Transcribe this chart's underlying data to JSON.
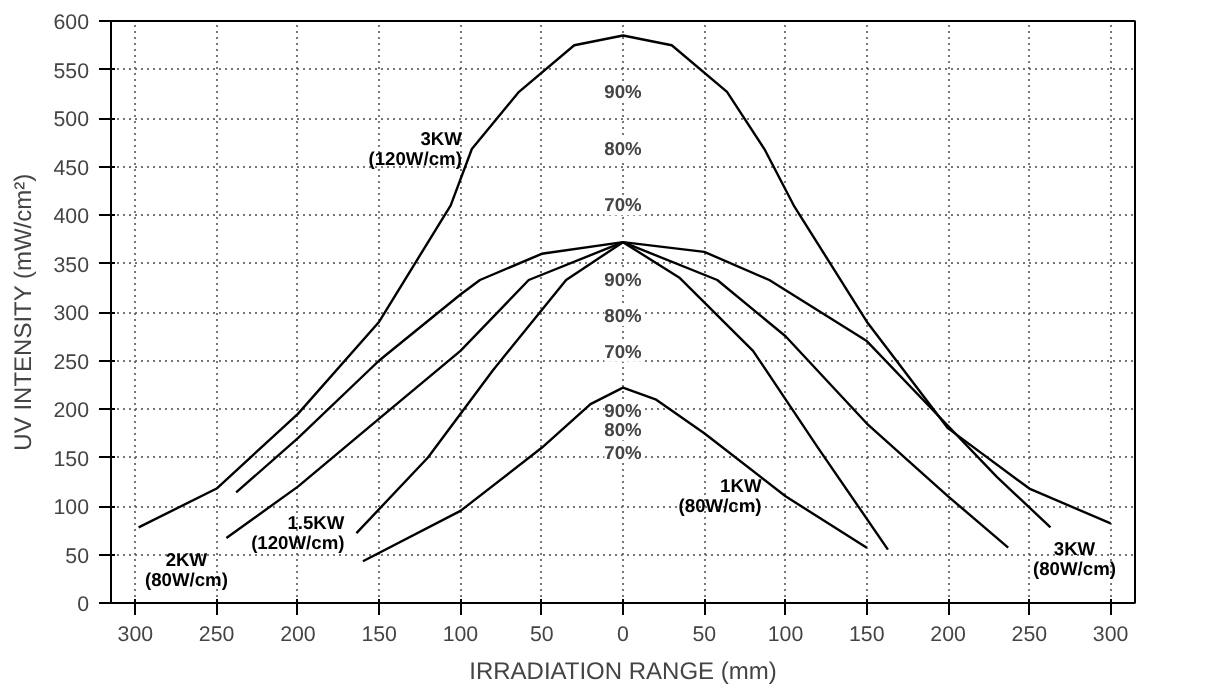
{
  "chart_data": {
    "type": "line",
    "xlabel": "IRRADIATION RANGE (mm)",
    "ylabel": "UV INTENSITY (mW/cm²)",
    "xlim": [
      -315,
      315
    ],
    "ylim": [
      0,
      600
    ],
    "xticks": [
      {
        "value": -300,
        "label": "300"
      },
      {
        "value": -250,
        "label": "250"
      },
      {
        "value": -200,
        "label": "200"
      },
      {
        "value": -150,
        "label": "150"
      },
      {
        "value": -100,
        "label": "100"
      },
      {
        "value": -50,
        "label": "50"
      },
      0,
      50,
      100,
      150,
      200,
      250,
      300
    ],
    "yticks": [
      0,
      50,
      100,
      150,
      200,
      250,
      300,
      350,
      400,
      450,
      500,
      550,
      600
    ],
    "grid": true,
    "marker": "none",
    "line_style": "solid",
    "series": [
      {
        "name": "3KW\n(120W/cm)",
        "color": "#000000",
        "x": [
          -298,
          -250,
          -200,
          -150,
          -106,
          -93,
          -64,
          -30,
          0,
          30,
          64,
          87,
          105,
          150,
          200,
          250,
          300
        ],
        "values": [
          78,
          118,
          195,
          290,
          410,
          468,
          527,
          575,
          585,
          575,
          527,
          468,
          410,
          290,
          180,
          118,
          82
        ]
      },
      {
        "name": "3KW\n(80W/cm)",
        "color": "#000000",
        "x": [
          -238,
          -200,
          -150,
          -100,
          -88,
          -50,
          0,
          50,
          90,
          150,
          190,
          230,
          263
        ],
        "values": [
          114,
          170,
          250,
          318,
          333,
          360,
          372,
          362,
          333,
          270,
          200,
          130,
          78
        ]
      },
      {
        "name": "2KW\n(80W/cm)",
        "color": "#000000",
        "x": [
          -244,
          -200,
          -150,
          -100,
          -58,
          0,
          58,
          100,
          150,
          200,
          237
        ],
        "values": [
          67,
          120,
          190,
          260,
          333,
          372,
          333,
          275,
          185,
          110,
          57
        ]
      },
      {
        "name": "1.5KW\n(120W/cm)",
        "color": "#000000",
        "x": [
          -164,
          -120,
          -80,
          -35,
          0,
          35,
          80,
          120,
          163
        ],
        "values": [
          72,
          150,
          240,
          333,
          372,
          335,
          260,
          160,
          55
        ]
      },
      {
        "name": "1KW\n(80W/cm)",
        "color": "#000000",
        "x": [
          -160,
          -100,
          -50,
          -20,
          0,
          20,
          50,
          100,
          150
        ],
        "values": [
          43,
          95,
          160,
          205,
          222,
          210,
          175,
          110,
          57
        ]
      }
    ],
    "annotations": [
      {
        "text": "90%",
        "y": 527
      },
      {
        "text": "80%",
        "y": 468
      },
      {
        "text": "70%",
        "y": 410
      },
      {
        "text": "90%",
        "y": 333
      },
      {
        "text": "80%",
        "y": 296
      },
      {
        "text": "70%",
        "y": 259
      },
      {
        "text": "90%",
        "y": 198
      },
      {
        "text": "80%",
        "y": 178
      },
      {
        "text": "70%",
        "y": 155
      }
    ]
  }
}
